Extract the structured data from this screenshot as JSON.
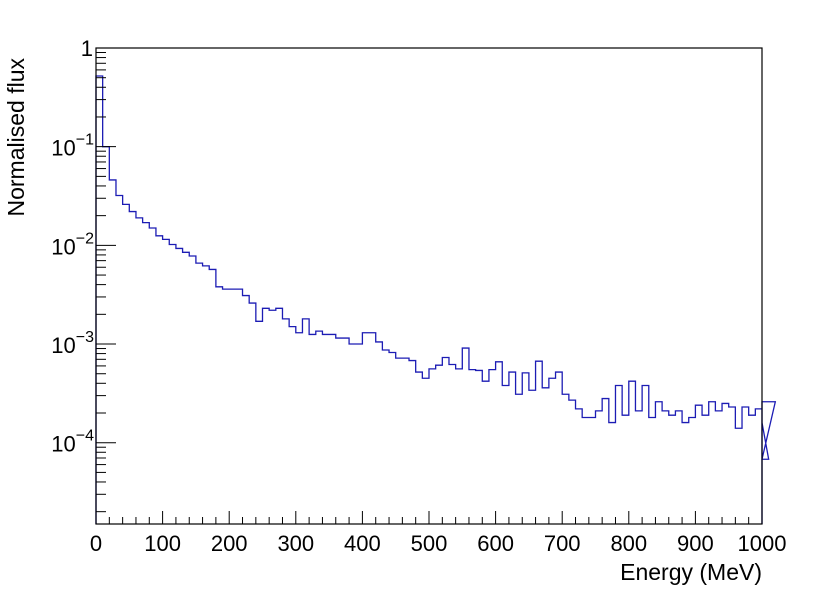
{
  "chart_data": {
    "type": "histogram",
    "title": "",
    "xlabel": "Energy (MeV)",
    "ylabel": "Normalised flux",
    "xlim": [
      0,
      1000
    ],
    "ylim": [
      1.5e-05,
      1
    ],
    "yscale": "log",
    "bin_width": 10,
    "x_ticks": [
      "0",
      "100",
      "200",
      "300",
      "400",
      "500",
      "600",
      "700",
      "800",
      "900",
      "1000"
    ],
    "line_color": "#1c1cb4",
    "grid": false,
    "legend": "none",
    "series": [
      {
        "values": [
          0.52,
          0.1,
          0.046,
          0.032,
          0.026,
          0.022,
          0.019,
          0.017,
          0.015,
          0.0125,
          0.0115,
          0.0102,
          0.0093,
          0.0085,
          0.0078,
          0.0066,
          0.0062,
          0.0057,
          0.0038,
          0.0036,
          0.0036,
          0.0036,
          0.0031,
          0.0026,
          0.0017,
          0.0023,
          0.0022,
          0.0023,
          0.0018,
          0.0015,
          0.0013,
          0.0018,
          0.00125,
          0.00135,
          0.00125,
          0.00125,
          0.00115,
          0.00115,
          0.001,
          0.001,
          0.0013,
          0.0013,
          0.00105,
          0.00087,
          0.00082,
          0.00072,
          0.00072,
          0.00068,
          0.00052,
          0.00045,
          0.00056,
          0.00061,
          0.00073,
          0.00062,
          0.00056,
          0.00091,
          0.00055,
          0.00054,
          0.00042,
          0.00055,
          0.00066,
          0.00038,
          0.00052,
          0.00031,
          0.00051,
          0.00034,
          0.00067,
          0.00036,
          0.00045,
          0.00052,
          0.00031,
          0.00027,
          0.00022,
          0.00018,
          0.00018,
          0.00021,
          0.00028,
          0.00016,
          0.00038,
          0.00019,
          0.00042,
          0.00021,
          0.00038,
          0.00018,
          0.00026,
          0.00021,
          0.00019,
          0.00021,
          0.00016,
          0.00018,
          0.00024,
          0.00019,
          0.00026,
          0.00021,
          0.00025,
          0.00023,
          0.00014,
          0.00023,
          0.00019,
          0.00022,
          0.00016,
          6.8e-05,
          0.00026
        ]
      }
    ]
  }
}
